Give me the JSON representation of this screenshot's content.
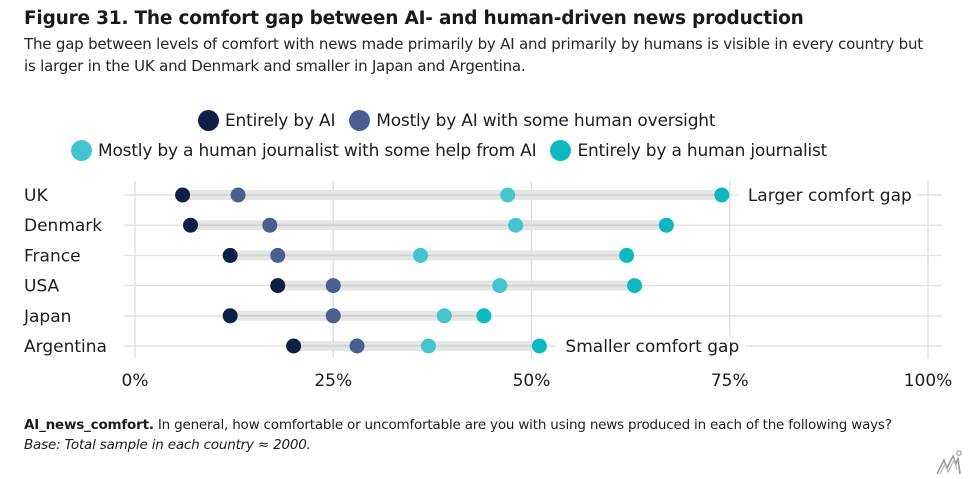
{
  "header": {
    "title": "Figure 31. The comfort gap between AI- and human-driven news production",
    "subtitle": "The gap between levels of comfort with news made primarily by AI and primarily by humans is visible in every country but is larger in the UK and Denmark and smaller in Japan and Argentina."
  },
  "footnote": {
    "label": "AI_news_comfort.",
    "question": " In general, how comfortable or uncomfortable are you with using news produced in each of the following ways? ",
    "base": "Base: Total sample in each country ≈ 2000."
  },
  "logo_icon": "watermark-logo-icon",
  "chart_data": {
    "type": "scatter",
    "subtype": "dot-plot",
    "title": "Figure 31. The comfort gap between AI- and human-driven news production",
    "xlabel": "",
    "ylabel": "",
    "xlim": [
      0,
      100
    ],
    "x_ticks": [
      "0%",
      "25%",
      "50%",
      "75%",
      "100%"
    ],
    "x_tick_values": [
      0,
      25,
      50,
      75,
      100
    ],
    "grid": true,
    "legend_position": "top",
    "categories": [
      "UK",
      "Denmark",
      "France",
      "USA",
      "Japan",
      "Argentina"
    ],
    "series": [
      {
        "name": "Entirely by AI",
        "color": "#0f1f45",
        "values": [
          6,
          7,
          12,
          18,
          12,
          20
        ]
      },
      {
        "name": "Mostly by AI with some human oversight",
        "color": "#4a5f8f",
        "values": [
          13,
          17,
          18,
          25,
          25,
          28
        ]
      },
      {
        "name": "Mostly by a human journalist with some help from AI",
        "color": "#45c3d1",
        "values": [
          47,
          48,
          36,
          46,
          39,
          37
        ]
      },
      {
        "name": "Entirely by a human journalist",
        "color": "#0db8c0",
        "values": [
          74,
          67,
          62,
          63,
          44,
          51
        ]
      }
    ],
    "annotations": [
      {
        "text": "Larger comfort gap",
        "category": "UK"
      },
      {
        "text": "Smaller comfort gap",
        "category": "Argentina"
      }
    ]
  }
}
